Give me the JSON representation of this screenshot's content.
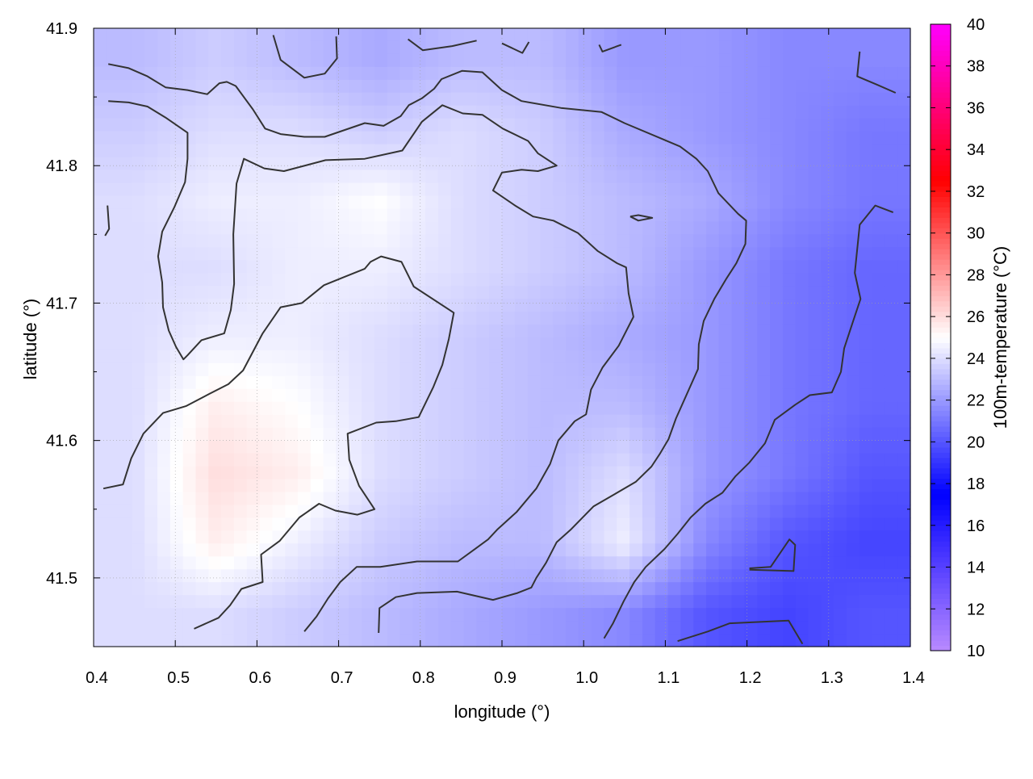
{
  "chart_data": {
    "type": "heatmap",
    "xlabel": "longitude (°)",
    "ylabel": "latitude (°)",
    "colorbar_label": "100m-temperature (°C)",
    "xlim": [
      0.4,
      1.4
    ],
    "ylim": [
      41.45,
      41.9
    ],
    "x_ticks": [
      "0.4",
      "0.5",
      "0.6",
      "0.7",
      "0.8",
      "0.9",
      "1.0",
      "1.1",
      "1.2",
      "1.3",
      "1.4"
    ],
    "y_ticks": [
      "41.5",
      "41.6",
      "41.7",
      "41.8",
      "41.9"
    ],
    "colorbar_range": [
      10,
      40
    ],
    "colorbar_ticks": [
      "10",
      "12",
      "14",
      "16",
      "18",
      "20",
      "22",
      "24",
      "26",
      "28",
      "30",
      "32",
      "34",
      "36",
      "38",
      "40"
    ],
    "colormap": [
      {
        "value": 10,
        "color": "#b98aff"
      },
      {
        "value": 17.5,
        "color": "#0000ff"
      },
      {
        "value": 25,
        "color": "#ffffff"
      },
      {
        "value": 32.5,
        "color": "#ff0000"
      },
      {
        "value": 40,
        "color": "#ff00ff"
      }
    ],
    "grid": true,
    "contour_color": "#333333",
    "grid_lon": [
      0.45,
      0.55,
      0.65,
      0.75,
      0.85,
      0.95,
      1.05,
      1.15,
      1.25,
      1.35
    ],
    "grid_lat": [
      41.875,
      41.825,
      41.775,
      41.725,
      41.675,
      41.625,
      41.575,
      41.525,
      41.475
    ],
    "temperature": [
      [
        23,
        23.5,
        23,
        22.5,
        23,
        23,
        22,
        22,
        21.5,
        21.5
      ],
      [
        23.5,
        24,
        24,
        23.5,
        24,
        23.5,
        22.5,
        22,
        21.5,
        21
      ],
      [
        24,
        24.5,
        24.5,
        25,
        24,
        23.5,
        23,
        22.5,
        21.5,
        21
      ],
      [
        24,
        24,
        24.5,
        24.5,
        24,
        23.5,
        23,
        22,
        21,
        20.5
      ],
      [
        24,
        24.5,
        24.5,
        24,
        23.5,
        23,
        22.5,
        22,
        21,
        20.5
      ],
      [
        24,
        25.5,
        25,
        24,
        23.5,
        23,
        23,
        22,
        21,
        20.5
      ],
      [
        24,
        26,
        25.5,
        24,
        23.5,
        23,
        24,
        22,
        21,
        20
      ],
      [
        24,
        25.5,
        24.5,
        23.5,
        23,
        23,
        24.5,
        21.5,
        20,
        19.5
      ],
      [
        24,
        24,
        23.5,
        23,
        22.5,
        22,
        21.5,
        20,
        19.5,
        20
      ]
    ],
    "contours": [
      [
        [
          0.418,
          41.874
        ],
        [
          0.443,
          41.871
        ],
        [
          0.466,
          41.865
        ],
        [
          0.488,
          41.857
        ],
        [
          0.515,
          41.855
        ],
        [
          0.539,
          41.852
        ],
        [
          0.554,
          41.86
        ],
        [
          0.563,
          41.861
        ],
        [
          0.574,
          41.858
        ],
        [
          0.595,
          41.841
        ],
        [
          0.61,
          41.827
        ],
        [
          0.629,
          41.823
        ],
        [
          0.658,
          41.821
        ],
        [
          0.683,
          41.821
        ],
        [
          0.732,
          41.831
        ],
        [
          0.755,
          41.829
        ],
        [
          0.776,
          41.836
        ],
        [
          0.786,
          41.844
        ],
        [
          0.802,
          41.849
        ],
        [
          0.817,
          41.856
        ],
        [
          0.826,
          41.863
        ],
        [
          0.851,
          41.869
        ],
        [
          0.876,
          41.868
        ],
        [
          0.9,
          41.855
        ],
        [
          0.924,
          41.847
        ],
        [
          0.972,
          41.842
        ],
        [
          1.022,
          41.839
        ],
        [
          1.05,
          41.831
        ],
        [
          1.094,
          41.82
        ],
        [
          1.118,
          41.814
        ],
        [
          1.138,
          41.805
        ],
        [
          1.152,
          41.796
        ],
        [
          1.165,
          41.78
        ],
        [
          1.189,
          41.765
        ],
        [
          1.199,
          41.76
        ],
        [
          1.198,
          41.743
        ],
        [
          1.187,
          41.729
        ],
        [
          1.175,
          41.718
        ],
        [
          1.16,
          41.703
        ],
        [
          1.147,
          41.687
        ],
        [
          1.141,
          41.67
        ],
        [
          1.14,
          41.652
        ],
        [
          1.113,
          41.616
        ],
        [
          1.104,
          41.601
        ],
        [
          1.093,
          41.59
        ],
        [
          1.083,
          41.581
        ],
        [
          1.064,
          41.57
        ],
        [
          1.038,
          41.561
        ],
        [
          1.012,
          41.552
        ],
        [
          0.984,
          41.535
        ],
        [
          0.967,
          41.526
        ],
        [
          0.954,
          41.511
        ],
        [
          0.942,
          41.5
        ],
        [
          0.936,
          41.493
        ],
        [
          0.919,
          41.489
        ],
        [
          0.889,
          41.484
        ],
        [
          0.845,
          41.49
        ],
        [
          0.796,
          41.489
        ],
        [
          0.77,
          41.486
        ],
        [
          0.75,
          41.478
        ],
        [
          0.749,
          41.46
        ]
      ],
      [
        [
          0.418,
          41.847
        ],
        [
          0.443,
          41.846
        ],
        [
          0.466,
          41.843
        ],
        [
          0.488,
          41.835
        ],
        [
          0.515,
          41.824
        ],
        [
          0.515,
          41.805
        ],
        [
          0.512,
          41.788
        ],
        [
          0.499,
          41.77
        ],
        [
          0.484,
          41.752
        ],
        [
          0.479,
          41.734
        ],
        [
          0.484,
          41.715
        ],
        [
          0.485,
          41.697
        ],
        [
          0.492,
          41.68
        ],
        [
          0.501,
          41.668
        ],
        [
          0.51,
          41.659
        ],
        [
          0.515,
          41.662
        ],
        [
          0.532,
          41.673
        ],
        [
          0.56,
          41.678
        ],
        [
          0.568,
          41.695
        ],
        [
          0.572,
          41.714
        ],
        [
          0.571,
          41.75
        ],
        [
          0.575,
          41.787
        ],
        [
          0.584,
          41.805
        ],
        [
          0.609,
          41.798
        ],
        [
          0.633,
          41.796
        ],
        [
          0.684,
          41.804
        ],
        [
          0.732,
          41.805
        ],
        [
          0.778,
          41.811
        ],
        [
          0.802,
          41.832
        ],
        [
          0.827,
          41.844
        ],
        [
          0.852,
          41.838
        ],
        [
          0.876,
          41.837
        ],
        [
          0.901,
          41.827
        ],
        [
          0.932,
          41.818
        ],
        [
          0.944,
          41.809
        ],
        [
          0.967,
          41.8
        ],
        [
          0.944,
          41.796
        ],
        [
          0.924,
          41.797
        ],
        [
          0.9,
          41.795
        ],
        [
          0.889,
          41.782
        ],
        [
          0.916,
          41.771
        ],
        [
          0.938,
          41.763
        ],
        [
          0.963,
          41.76
        ],
        [
          0.993,
          41.751
        ],
        [
          1.017,
          41.738
        ],
        [
          1.041,
          41.729
        ],
        [
          1.052,
          41.726
        ],
        [
          1.055,
          41.707
        ],
        [
          1.061,
          41.69
        ],
        [
          1.043,
          41.669
        ],
        [
          1.023,
          41.653
        ],
        [
          1.009,
          41.637
        ],
        [
          1.003,
          41.619
        ],
        [
          0.989,
          41.614
        ],
        [
          0.969,
          41.6
        ],
        [
          0.959,
          41.583
        ],
        [
          0.942,
          41.565
        ],
        [
          0.918,
          41.548
        ],
        [
          0.894,
          41.535
        ],
        [
          0.883,
          41.528
        ],
        [
          0.867,
          41.521
        ],
        [
          0.846,
          41.512
        ],
        [
          0.796,
          41.512
        ],
        [
          0.751,
          41.508
        ],
        [
          0.722,
          41.508
        ],
        [
          0.702,
          41.497
        ],
        [
          0.687,
          41.485
        ],
        [
          0.673,
          41.472
        ],
        [
          0.658,
          41.461
        ]
      ],
      [
        [
          0.412,
          41.565
        ],
        [
          0.436,
          41.568
        ],
        [
          0.446,
          41.587
        ],
        [
          0.461,
          41.605
        ],
        [
          0.485,
          41.62
        ],
        [
          0.513,
          41.625
        ],
        [
          0.542,
          41.634
        ],
        [
          0.565,
          41.641
        ],
        [
          0.583,
          41.651
        ],
        [
          0.607,
          41.678
        ],
        [
          0.629,
          41.697
        ],
        [
          0.655,
          41.7
        ],
        [
          0.682,
          41.713
        ],
        [
          0.707,
          41.719
        ],
        [
          0.732,
          41.725
        ],
        [
          0.739,
          41.73
        ],
        [
          0.752,
          41.734
        ],
        [
          0.777,
          41.73
        ],
        [
          0.792,
          41.712
        ],
        [
          0.841,
          41.693
        ],
        [
          0.835,
          41.674
        ],
        [
          0.827,
          41.655
        ],
        [
          0.816,
          41.639
        ],
        [
          0.798,
          41.617
        ],
        [
          0.77,
          41.614
        ],
        [
          0.746,
          41.613
        ],
        [
          0.711,
          41.605
        ],
        [
          0.713,
          41.586
        ],
        [
          0.725,
          41.567
        ],
        [
          0.744,
          41.55
        ],
        [
          0.723,
          41.546
        ],
        [
          0.696,
          41.549
        ],
        [
          0.676,
          41.554
        ],
        [
          0.652,
          41.544
        ],
        [
          0.628,
          41.527
        ],
        [
          0.605,
          41.517
        ],
        [
          0.607,
          41.497
        ],
        [
          0.581,
          41.492
        ],
        [
          0.567,
          41.48
        ],
        [
          0.553,
          41.471
        ],
        [
          0.523,
          41.463
        ]
      ],
      [
        [
          1.379,
          41.766
        ],
        [
          1.357,
          41.771
        ],
        [
          1.338,
          41.757
        ],
        [
          1.332,
          41.722
        ],
        [
          1.339,
          41.703
        ],
        [
          1.33,
          41.687
        ],
        [
          1.319,
          41.667
        ],
        [
          1.315,
          41.65
        ],
        [
          1.304,
          41.635
        ],
        [
          1.277,
          41.633
        ],
        [
          1.259,
          41.626
        ],
        [
          1.234,
          41.615
        ],
        [
          1.222,
          41.598
        ],
        [
          1.203,
          41.584
        ],
        [
          1.186,
          41.574
        ],
        [
          1.17,
          41.562
        ],
        [
          1.149,
          41.554
        ],
        [
          1.131,
          41.544
        ],
        [
          1.115,
          41.532
        ],
        [
          1.099,
          41.521
        ],
        [
          1.076,
          41.508
        ],
        [
          1.062,
          41.497
        ],
        [
          1.049,
          41.483
        ],
        [
          1.036,
          41.467
        ],
        [
          1.025,
          41.456
        ]
      ],
      [
        [
          1.338,
          41.883
        ],
        [
          1.335,
          41.865
        ],
        [
          1.359,
          41.859
        ],
        [
          1.382,
          41.853
        ]
      ],
      [
        [
          1.115,
          41.454
        ],
        [
          1.152,
          41.461
        ],
        [
          1.179,
          41.467
        ],
        [
          1.251,
          41.469
        ],
        [
          1.268,
          41.452
        ]
      ],
      [
        [
          1.203,
          41.507
        ],
        [
          1.229,
          41.508
        ],
        [
          1.252,
          41.528
        ],
        [
          1.259,
          41.524
        ],
        [
          1.257,
          41.505
        ],
        [
          1.203,
          41.506
        ]
      ],
      [
        [
          0.62,
          41.895
        ],
        [
          0.629,
          41.877
        ],
        [
          0.658,
          41.864
        ],
        [
          0.683,
          41.867
        ],
        [
          0.698,
          41.878
        ],
        [
          0.697,
          41.894
        ]
      ],
      [
        [
          0.785,
          41.892
        ],
        [
          0.803,
          41.884
        ],
        [
          0.839,
          41.887
        ],
        [
          0.869,
          41.891
        ]
      ],
      [
        [
          0.9,
          41.889
        ],
        [
          0.925,
          41.882
        ],
        [
          0.933,
          41.89
        ]
      ],
      [
        [
          1.019,
          41.888
        ],
        [
          1.023,
          41.883
        ],
        [
          1.046,
          41.888
        ]
      ],
      [
        [
          1.057,
          41.763
        ],
        [
          1.067,
          41.764
        ],
        [
          1.084,
          41.762
        ],
        [
          1.067,
          41.76
        ],
        [
          1.057,
          41.763
        ]
      ],
      [
        [
          0.417,
          41.771
        ],
        [
          0.419,
          41.754
        ],
        [
          0.414,
          41.749
        ]
      ]
    ]
  }
}
